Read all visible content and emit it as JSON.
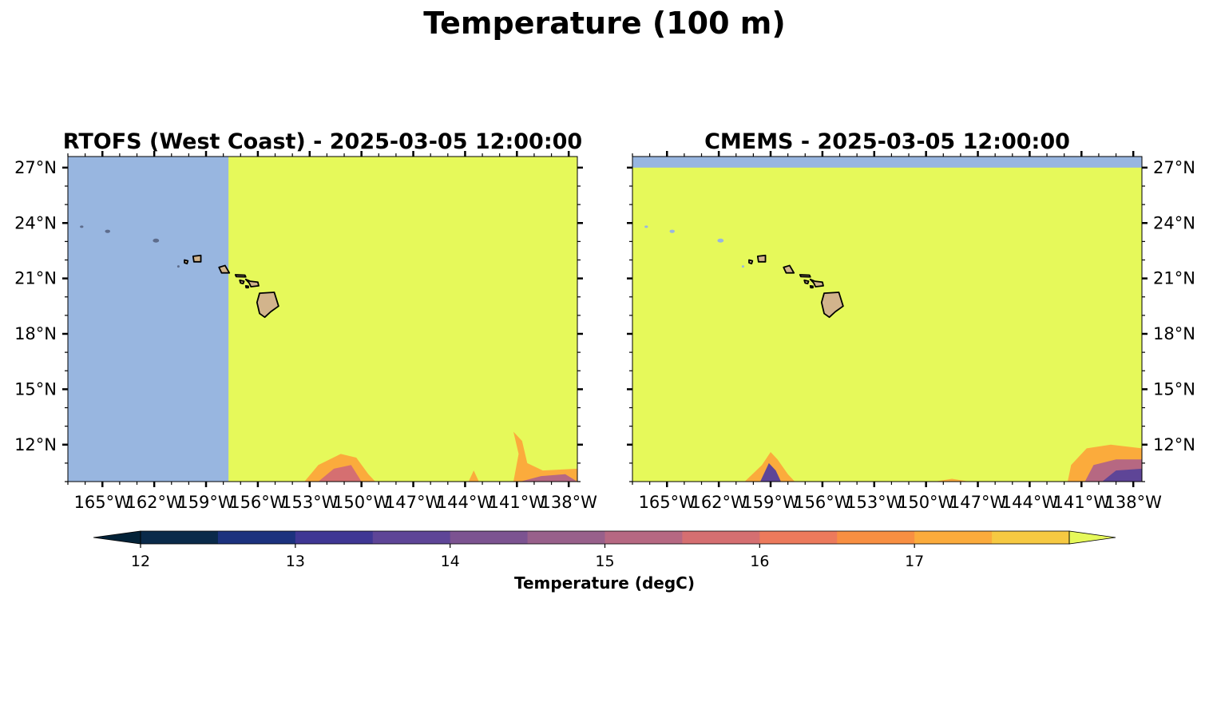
{
  "title": "Temperature (100 m)",
  "panels": [
    {
      "id": "rtofs",
      "title": "RTOFS (West Coast) - 2025-03-05 12:00:00",
      "lat_label_side": "left",
      "missing_region": {
        "lon_from": -167.0,
        "lon_to": -157.7,
        "lat_from": 10.0,
        "lat_to": 27.6
      },
      "warm_fill_color": "#e6f95a",
      "missing_color": "#98b6e0"
    },
    {
      "id": "cmems",
      "title": "CMEMS - 2025-03-05 12:00:00",
      "lat_label_side": "right",
      "missing_region": {
        "lon_from": -167.0,
        "lon_to": -137.5,
        "lat_from": 27.0,
        "lat_to": 27.6
      },
      "warm_fill_color": "#e6f95a",
      "missing_color": "#98b6e0"
    }
  ],
  "map_extent": {
    "lon_min": -167.0,
    "lon_max": -137.5,
    "lat_min": 10.0,
    "lat_max": 27.6
  },
  "lon_ticks": [
    -165,
    -162,
    -159,
    -156,
    -153,
    -150,
    -147,
    -144,
    -141,
    -138
  ],
  "lon_tick_labels": [
    "165°W",
    "162°W",
    "159°W",
    "156°W",
    "153°W",
    "150°W",
    "147°W",
    "144°W",
    "141°W",
    "138°W"
  ],
  "lat_ticks": [
    12,
    15,
    18,
    21,
    24,
    27
  ],
  "lat_tick_labels": [
    "12°N",
    "15°N",
    "18°N",
    "21°N",
    "24°N",
    "27°N"
  ],
  "land_color": "#d2b48c",
  "colorbar": {
    "label": "Temperature (degC)",
    "min": 11.75,
    "max": 17.75,
    "bounds": [
      12.0,
      12.5,
      13.0,
      13.5,
      14.0,
      14.5,
      15.0,
      15.5,
      16.0,
      16.5,
      17.0,
      17.5
    ],
    "colors": [
      "#0a2a4a",
      "#1c327e",
      "#3f3794",
      "#5e4597",
      "#7c5391",
      "#98608b",
      "#b66882",
      "#d56f71",
      "#ec7a5c",
      "#f88f42",
      "#fbab3c",
      "#f6c942"
    ],
    "under_color": "#032238",
    "over_color": "#e6f95a",
    "tick_values": [
      12,
      13,
      14,
      15,
      16,
      17
    ],
    "tick_labels": [
      "12",
      "13",
      "14",
      "15",
      "16",
      "17"
    ]
  },
  "chart_data": {
    "type": "heatmap",
    "title": "Temperature (100 m)",
    "variable": "Temperature (degC)",
    "depth": "100 m",
    "models": [
      "RTOFS (West Coast)",
      "CMEMS"
    ],
    "time": "2025-03-05 12:00:00",
    "xlim": [
      -167.0,
      -137.5
    ],
    "ylim": [
      10.0,
      27.6
    ],
    "color_range": [
      12,
      17.5
    ]
  }
}
